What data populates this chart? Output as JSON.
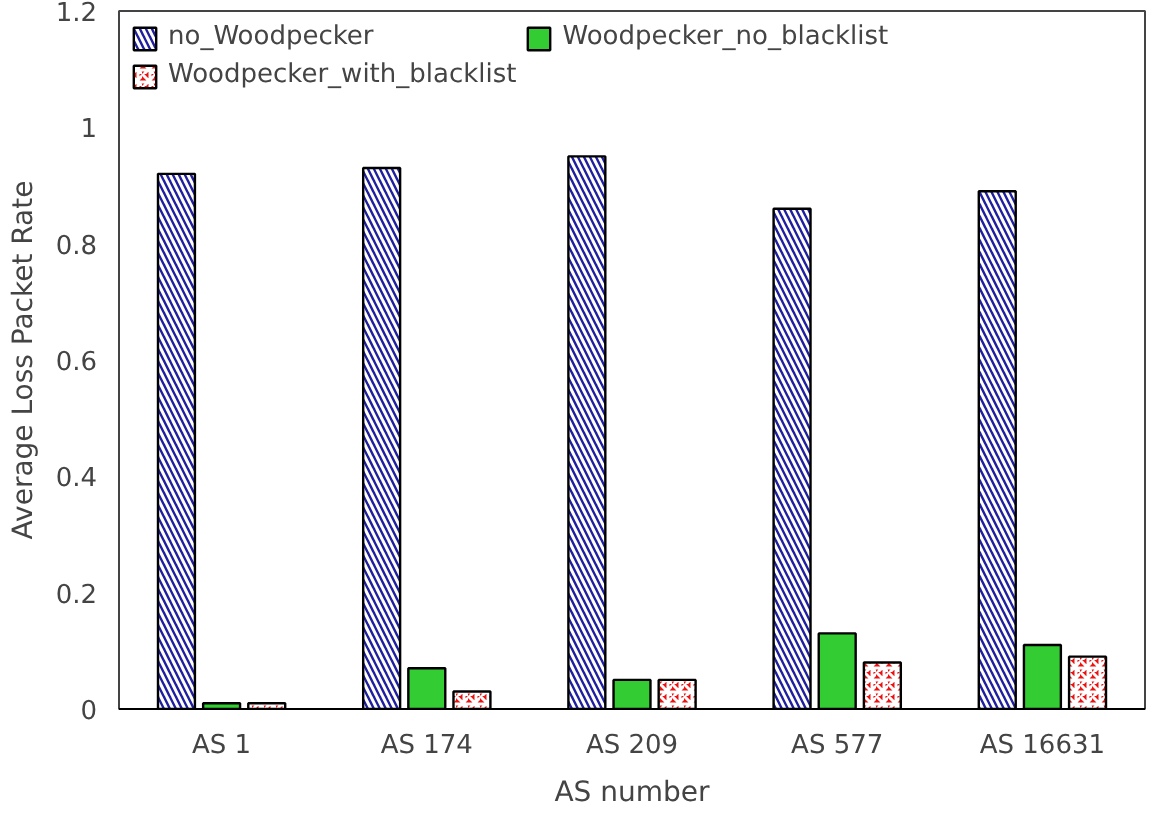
{
  "chart_data": {
    "type": "bar",
    "xlabel": "AS number",
    "ylabel": "Average Loss Packet Rate",
    "categories": [
      "AS 1",
      "AS 174",
      "AS 209",
      "AS 577",
      "AS 16631"
    ],
    "series": [
      {
        "name": "no_Woodpecker",
        "color": "#1f1fa0",
        "values": [
          0.92,
          0.93,
          0.95,
          0.86,
          0.89
        ]
      },
      {
        "name": "Woodpecker_no_blacklist",
        "color": "#33cc33",
        "values": [
          0.01,
          0.07,
          0.05,
          0.13,
          0.11
        ]
      },
      {
        "name": "Woodpecker_with_blacklist",
        "color": "#ee1111",
        "values": [
          0.01,
          0.03,
          0.05,
          0.08,
          0.09
        ]
      }
    ],
    "ylim": [
      0,
      1.2
    ],
    "yticks": [
      0,
      0.2,
      0.4,
      0.6,
      0.8,
      1,
      1.2
    ],
    "grid": false,
    "legend": "top left"
  }
}
